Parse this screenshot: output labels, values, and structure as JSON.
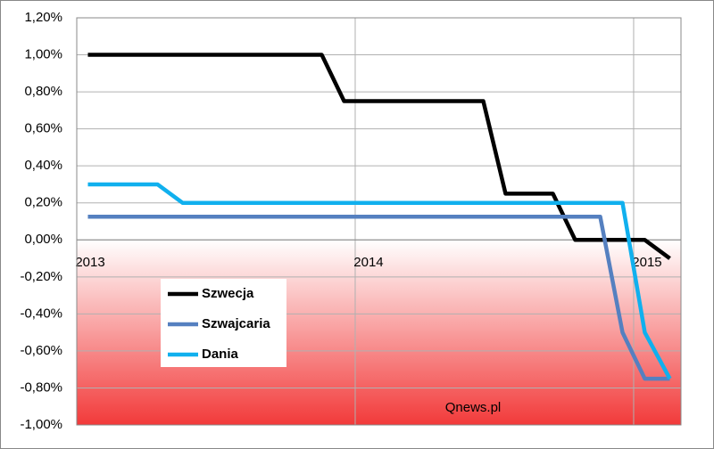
{
  "chart_data": {
    "type": "line",
    "annotation": "Qnews.pl",
    "xlim": [
      2013,
      2015.17
    ],
    "xticks": [
      2013,
      2014,
      2015
    ],
    "ylim": [
      -1.0,
      1.2
    ],
    "yticks": [
      {
        "value": -1.0,
        "label": "-1,00%"
      },
      {
        "value": -0.8,
        "label": "-0,80%"
      },
      {
        "value": -0.6,
        "label": "-0,60%"
      },
      {
        "value": -0.4,
        "label": "-0,40%"
      },
      {
        "value": -0.2,
        "label": "-0,20%"
      },
      {
        "value": 0,
        "label": "0,00%"
      },
      {
        "value": 0.2,
        "label": "0,20%"
      },
      {
        "value": 0.4,
        "label": "0,40%"
      },
      {
        "value": 0.6,
        "label": "0,60%"
      },
      {
        "value": 0.8,
        "label": "0,80%"
      },
      {
        "value": 1.0,
        "label": "1,00%"
      },
      {
        "value": 1.2,
        "label": "1,20%"
      }
    ],
    "grid": true,
    "series": [
      {
        "name": "Szwecja",
        "color": "#000000",
        "x": [
          2013.04,
          2013.88,
          2013.96,
          2014.46,
          2014.54,
          2014.71,
          2014.79,
          2015.04,
          2015.13
        ],
        "values": [
          1.0,
          1.0,
          0.75,
          0.75,
          0.25,
          0.25,
          0,
          0,
          -0.1
        ]
      },
      {
        "name": "Szwajcaria",
        "color": "#5580c0",
        "x": [
          2013.04,
          2014.88,
          2014.96,
          2015.04,
          2015.13
        ],
        "values": [
          0.125,
          0.125,
          -0.5,
          -0.75,
          -0.75
        ]
      },
      {
        "name": "Dania",
        "color": "#10b0ee",
        "x": [
          2013.04,
          2013.29,
          2013.38,
          2014.96,
          2015.04,
          2015.13
        ],
        "values": [
          0.3,
          0.3,
          0.2,
          0.2,
          -0.5,
          -0.75
        ]
      }
    ]
  }
}
